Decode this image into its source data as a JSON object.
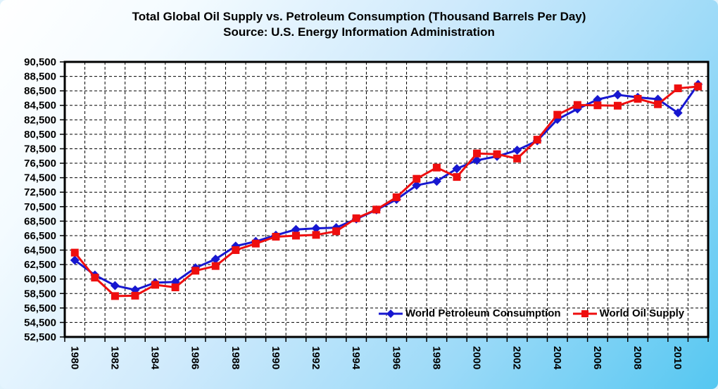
{
  "page": {
    "background_gradient": [
      "#ffffff",
      "#cfeafc",
      "#55c7f1"
    ],
    "plot_frame_color": "#000000",
    "gridline_color": "#000000"
  },
  "chart_data": {
    "type": "line",
    "title": "Total Global Oil Supply vs. Petroleum Consumption (Thousand Barrels Per Day)",
    "subtitle": "Source: U.S. Energy Information Administration",
    "plot_background": "#ffffff",
    "grid": true,
    "legend_position": "inside-bottom-right",
    "ylim": [
      52500,
      90500
    ],
    "ytick_step": 2000,
    "y_tick_labels": [
      "52,500",
      "54,500",
      "56,500",
      "58,500",
      "60,500",
      "62,500",
      "64,500",
      "66,500",
      "68,500",
      "70,500",
      "72,500",
      "74,500",
      "76,500",
      "78,500",
      "80,500",
      "82,500",
      "84,500",
      "86,500",
      "88,500",
      "90,500"
    ],
    "x": [
      1980,
      1981,
      1982,
      1983,
      1984,
      1985,
      1986,
      1987,
      1988,
      1989,
      1990,
      1991,
      1992,
      1993,
      1994,
      1995,
      1996,
      1997,
      1998,
      1999,
      2000,
      2001,
      2002,
      2003,
      2004,
      2005,
      2006,
      2007,
      2008,
      2009,
      2010,
      2011
    ],
    "x_tick_labels": [
      "1980",
      "1982",
      "1984",
      "1986",
      "1988",
      "1990",
      "1992",
      "1994",
      "1996",
      "1998",
      "2000",
      "2002",
      "2004",
      "2006",
      "2008",
      "2010"
    ],
    "xtick_label_every": 2,
    "series": [
      {
        "name": "World Petroleum Consumption",
        "color": "#1717d0",
        "marker": "diamond",
        "values": [
          63100,
          61050,
          59600,
          59000,
          60000,
          60100,
          62050,
          63250,
          65050,
          65700,
          66550,
          67350,
          67500,
          67600,
          68800,
          70050,
          71500,
          73450,
          74000,
          75750,
          76900,
          77450,
          78300,
          79600,
          82550,
          84000,
          85300,
          85950,
          85600,
          85350,
          83450,
          87400
        ]
      },
      {
        "name": "World Oil Supply",
        "color": "#ee0e0e",
        "marker": "square",
        "values": [
          64150,
          60700,
          58150,
          58200,
          59700,
          59350,
          61650,
          62300,
          64500,
          65400,
          66350,
          66500,
          66600,
          67100,
          68900,
          70100,
          71800,
          74350,
          75900,
          74600,
          77850,
          77750,
          77150,
          79750,
          83200,
          84550,
          84500,
          84450,
          85400,
          84650,
          86850,
          87100
        ]
      }
    ]
  }
}
